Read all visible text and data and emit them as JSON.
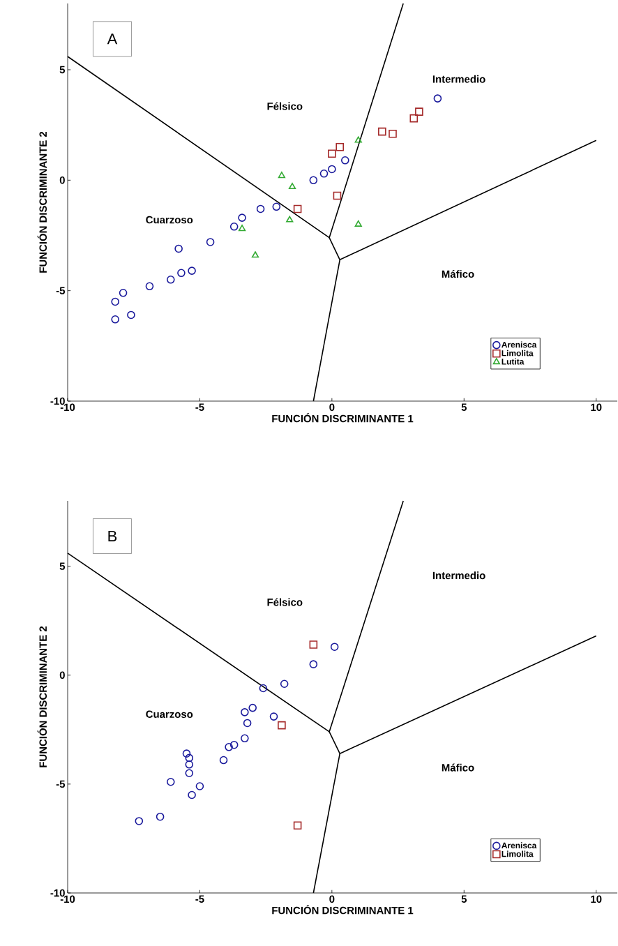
{
  "chart_data": [
    {
      "type": "scatter",
      "xlabel": "FUNCIÓN DISCRIMINANTE 1",
      "ylabel": "FUNCIÓN DISCRIMINANTE 2",
      "xlim": [
        -10,
        10.8
      ],
      "ylim": [
        -10,
        8
      ],
      "xticks": [
        -10,
        -5,
        0,
        5,
        10
      ],
      "yticks": [
        -10,
        -5,
        0,
        5
      ],
      "grid": false,
      "legend": "bottom right",
      "annotations": [
        "A",
        "Félsico",
        "Intermedio",
        "Cuarzoso",
        "Máfico"
      ],
      "series": [
        {
          "name": "Arenisca",
          "color": "#1a1a9c",
          "marker": "circle",
          "x": [
            -8.2,
            -7.6,
            -8.2,
            -7.9,
            -6.9,
            -6.1,
            -5.7,
            -5.3,
            -5.8,
            -4.6,
            -3.7,
            -3.4,
            -2.7,
            -2.1,
            -0.7,
            -0.3,
            0.0,
            0.5,
            4.0
          ],
          "values": [
            -6.3,
            -6.1,
            -5.5,
            -5.1,
            -4.8,
            -4.5,
            -4.2,
            -4.1,
            -3.1,
            -2.8,
            -2.1,
            -1.7,
            -1.3,
            -1.2,
            0.0,
            0.3,
            0.5,
            0.9,
            3.7
          ]
        },
        {
          "name": "Limolita",
          "color": "#a52a2a",
          "marker": "square",
          "x": [
            0.0,
            0.3,
            0.2,
            -1.3,
            1.9,
            2.3,
            3.1,
            3.3
          ],
          "values": [
            1.2,
            1.5,
            -0.7,
            -1.3,
            2.2,
            2.1,
            2.8,
            3.1
          ]
        },
        {
          "name": "Lutita",
          "color": "#33aa33",
          "marker": "triangle",
          "x": [
            -1.9,
            -1.5,
            1.0,
            -1.6,
            1.0,
            -3.4,
            -2.9
          ],
          "values": [
            0.2,
            -0.3,
            1.8,
            -1.8,
            -2.0,
            -2.2,
            -3.4
          ]
        },
        {
          "type": "line",
          "color": "#000000",
          "marker": "none",
          "x": [
            -10,
            -0.1,
            2.7
          ],
          "values": [
            5.6,
            -2.6,
            8.0
          ]
        },
        {
          "type": "line",
          "color": "#000000",
          "marker": "none",
          "x": [
            -0.1,
            0.3
          ],
          "values": [
            -2.6,
            -3.6
          ]
        },
        {
          "type": "line",
          "color": "#000000",
          "marker": "none",
          "x": [
            0.3,
            10
          ],
          "values": [
            -3.6,
            1.8
          ]
        },
        {
          "type": "line",
          "color": "#000000",
          "marker": "none",
          "x": [
            0.3,
            -0.7
          ],
          "values": [
            -3.6,
            -10
          ]
        }
      ]
    },
    {
      "type": "scatter",
      "xlabel": "FUNCIÓN DISCRIMINANTE 1",
      "ylabel": "FUNCIÓN DISCRIMINANTE 2",
      "xlim": [
        -10,
        10.8
      ],
      "ylim": [
        -10,
        8
      ],
      "xticks": [
        -10,
        -5,
        0,
        5,
        10
      ],
      "yticks": [
        -10,
        -5,
        0,
        5
      ],
      "grid": false,
      "legend": "bottom right",
      "annotations": [
        "B",
        "Félsico",
        "Intermedio",
        "Cuarzoso",
        "Máfico"
      ],
      "series": [
        {
          "name": "Arenisca",
          "color": "#1a1a9c",
          "marker": "circle",
          "x": [
            -7.3,
            -6.5,
            -6.1,
            -5.3,
            -5.0,
            -5.4,
            -5.4,
            -5.4,
            -5.5,
            -4.1,
            -3.9,
            -3.7,
            -3.3,
            -3.2,
            -3.3,
            -3.0,
            -2.2,
            -2.6,
            -1.8,
            -0.7,
            0.1
          ],
          "values": [
            -6.7,
            -6.5,
            -4.9,
            -5.5,
            -5.1,
            -4.5,
            -4.1,
            -3.8,
            -3.6,
            -3.9,
            -3.3,
            -3.2,
            -2.9,
            -2.2,
            -1.7,
            -1.5,
            -1.9,
            -0.6,
            -0.4,
            0.5,
            1.3
          ]
        },
        {
          "name": "Limolita",
          "color": "#a52a2a",
          "marker": "square",
          "x": [
            -0.7,
            -1.9,
            -1.3
          ],
          "values": [
            1.4,
            -2.3,
            -6.9
          ]
        },
        {
          "type": "line",
          "color": "#000000",
          "marker": "none",
          "x": [
            -10,
            -0.1,
            2.7
          ],
          "values": [
            5.6,
            -2.6,
            8.0
          ]
        },
        {
          "type": "line",
          "color": "#000000",
          "marker": "none",
          "x": [
            -0.1,
            0.3
          ],
          "values": [
            -2.6,
            -3.6
          ]
        },
        {
          "type": "line",
          "color": "#000000",
          "marker": "none",
          "x": [
            0.3,
            10
          ],
          "values": [
            -3.6,
            1.8
          ]
        },
        {
          "type": "line",
          "color": "#000000",
          "marker": "none",
          "x": [
            0.3,
            -0.7
          ],
          "values": [
            -3.6,
            -10
          ]
        }
      ]
    }
  ]
}
